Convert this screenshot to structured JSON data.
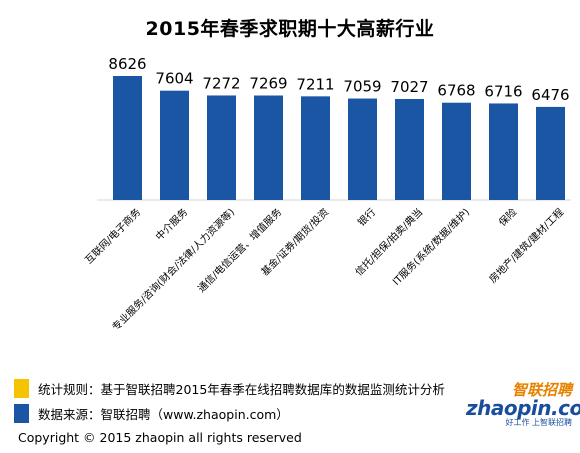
{
  "chart_data": {
    "type": "bar",
    "title": "2015年春季求职期十大高薪行业",
    "categories": [
      "互联网/电子商务",
      "中介服务",
      "专业服务/咨询(财会/法律/人力资源等)",
      "通信/电信运营、增值服务",
      "基金/证券/期货/投资",
      "银行",
      "信托/担保/拍卖/典当",
      "IT服务(系统/数据/维护)",
      "保险",
      "房地产/建筑/建材/工程"
    ],
    "values": [
      8626,
      7604,
      7272,
      7269,
      7211,
      7059,
      7027,
      6768,
      6716,
      6476
    ],
    "ylim": [
      0,
      9000
    ],
    "grid": false,
    "bar_color": "#1b56a4",
    "axis_color": "#d4d4d4"
  },
  "footer": {
    "rule_text": "统计规则：基于智联招聘2015年春季在线招聘数据库的数据监测统计分析",
    "rule_color": "#f4c400",
    "source_text": "数据来源：智联招聘（www.zhaopin.com）",
    "source_color": "#1b56a4",
    "copyright": "Copyright  ©  2015 zhaopin all rights reserved"
  },
  "logo": {
    "cn": "智联招聘",
    "en": "zhaopin.com",
    "slogan": "好工作  上智联招聘"
  }
}
